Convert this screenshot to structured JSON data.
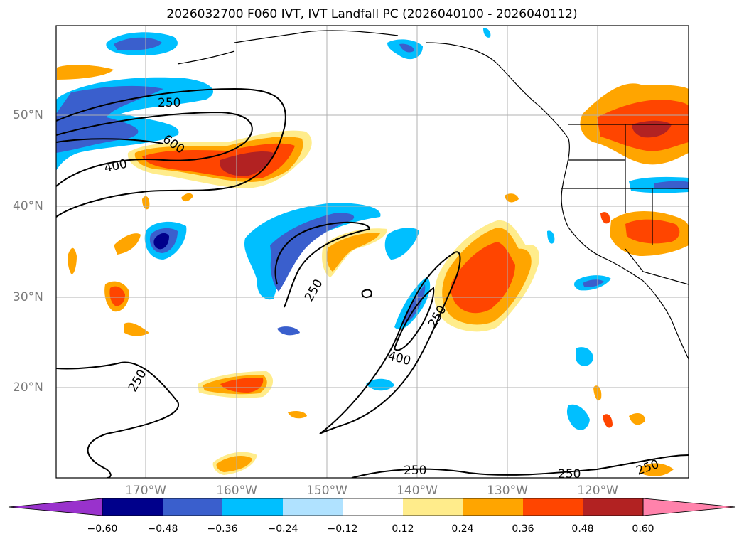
{
  "title": "2026032700 F060 IVT, IVT Landfall PC (2026040100 - 2026040112)",
  "lat_labels": [
    "50°N",
    "40°N",
    "30°N",
    "20°N"
  ],
  "lon_labels": [
    "170°W",
    "160°W",
    "150°W",
    "140°W",
    "130°W",
    "120°W"
  ],
  "contour_labels": [
    "250",
    "600",
    "400",
    "250",
    "400",
    "250",
    "250",
    "250",
    "250",
    "250"
  ],
  "colorbar": {
    "ticks": [
      "−0.60",
      "−0.48",
      "−0.36",
      "−0.24",
      "−0.12",
      "0.12",
      "0.24",
      "0.36",
      "0.48",
      "0.60"
    ],
    "colors": [
      "#9932CC",
      "#00008B",
      "#3A5FCD",
      "#00BFFF",
      "#B0E2FF",
      "#FFFFFF",
      "#FFEC8B",
      "#FFA500",
      "#FF4500",
      "#B22222",
      "#FF82AB"
    ]
  }
}
